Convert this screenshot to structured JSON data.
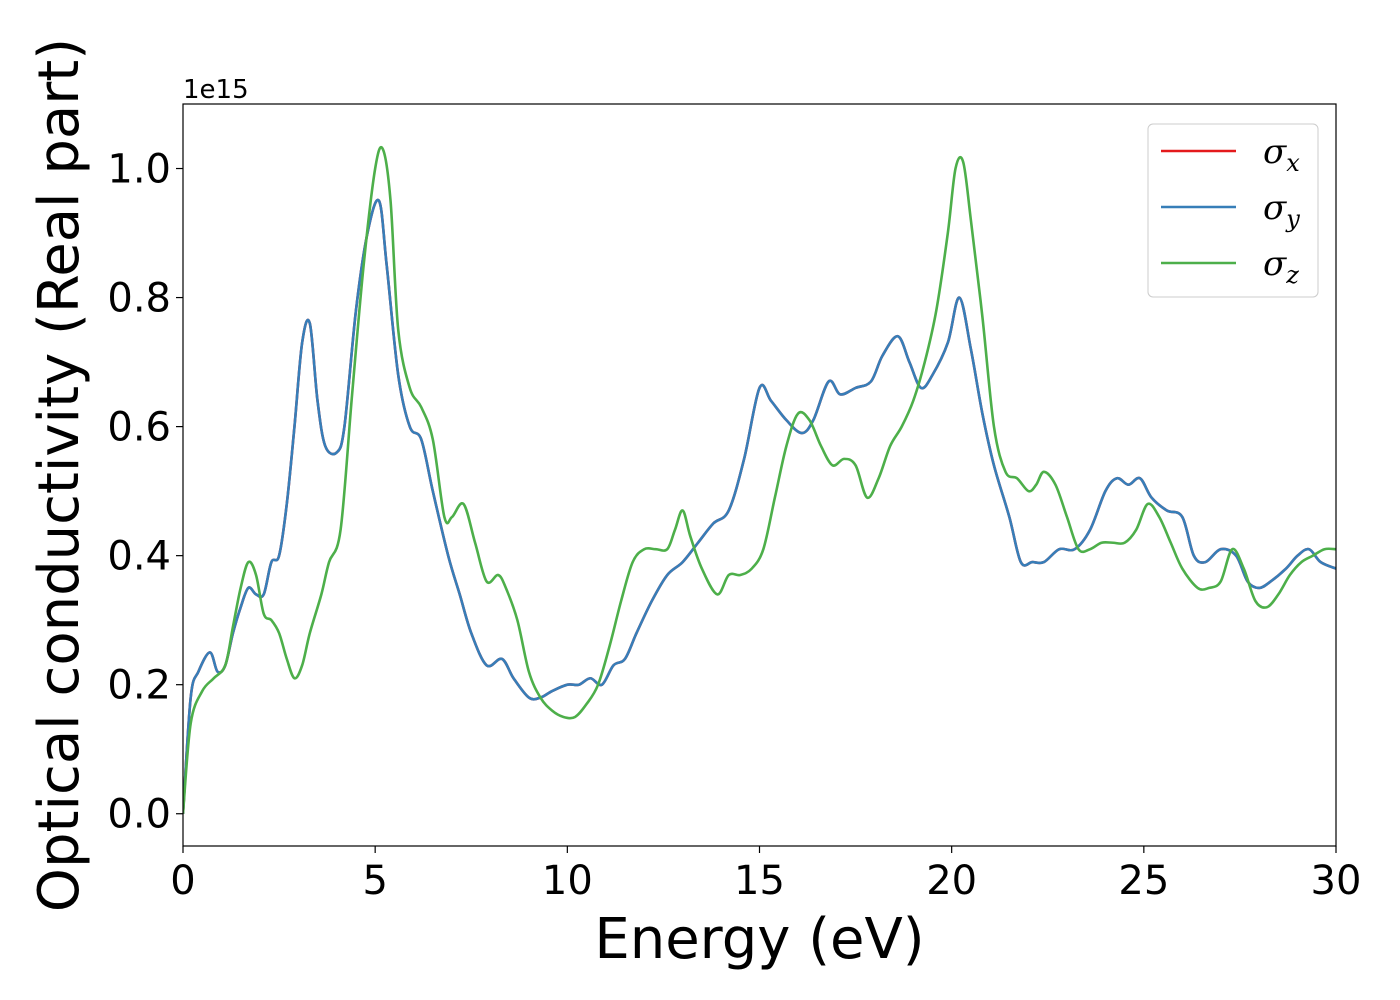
{
  "chart_data": {
    "type": "line",
    "xlabel": "Energy (eV)",
    "ylabel": "Optical conductivity (Real part)",
    "y_offset_label": "1e15",
    "xlim": [
      0,
      30
    ],
    "ylim": [
      -0.05,
      1.1
    ],
    "x_ticks": [
      0,
      5,
      10,
      15,
      20,
      25,
      30
    ],
    "y_ticks": [
      0.0,
      0.2,
      0.4,
      0.6,
      0.8,
      1.0
    ],
    "x_tick_labels": [
      "0",
      "5",
      "10",
      "15",
      "20",
      "25",
      "30"
    ],
    "y_tick_labels": [
      "0.0",
      "0.2",
      "0.4",
      "0.6",
      "0.8",
      "1.0"
    ],
    "grid": false,
    "legend_position": "top-right",
    "series": [
      {
        "name": "σx",
        "base": "σ",
        "sub": "x",
        "color": "#e41a1c",
        "x": [
          0,
          0.2,
          0.4,
          0.7,
          0.9,
          1.1,
          1.3,
          1.5,
          1.7,
          1.9,
          2.1,
          2.3,
          2.5,
          2.7,
          2.9,
          3.1,
          3.3,
          3.5,
          3.7,
          4.0,
          4.2,
          4.5,
          4.8,
          5.1,
          5.3,
          5.6,
          5.9,
          6.2,
          6.5,
          6.9,
          7.2,
          7.5,
          7.9,
          8.3,
          8.6,
          9.0,
          9.3,
          9.6,
          10.0,
          10.3,
          10.6,
          10.9,
          11.2,
          11.5,
          11.8,
          12.2,
          12.6,
          13.0,
          13.4,
          13.8,
          14.2,
          14.6,
          15.0,
          15.3,
          15.7,
          16.1,
          16.4,
          16.8,
          17.1,
          17.5,
          17.9,
          18.2,
          18.6,
          18.9,
          19.2,
          19.5,
          19.9,
          20.2,
          20.5,
          20.8,
          21.1,
          21.5,
          21.8,
          22.1,
          22.4,
          22.8,
          23.2,
          23.6,
          24.0,
          24.3,
          24.6,
          24.9,
          25.2,
          25.6,
          26.0,
          26.3,
          26.6,
          27.0,
          27.4,
          27.7,
          28.0,
          28.3,
          28.7,
          29.0,
          29.3,
          29.6,
          30.0
        ],
        "values": [
          0.0,
          0.18,
          0.22,
          0.25,
          0.22,
          0.23,
          0.28,
          0.32,
          0.35,
          0.34,
          0.34,
          0.39,
          0.4,
          0.48,
          0.6,
          0.73,
          0.76,
          0.64,
          0.57,
          0.56,
          0.6,
          0.78,
          0.9,
          0.95,
          0.85,
          0.68,
          0.6,
          0.58,
          0.5,
          0.4,
          0.34,
          0.28,
          0.23,
          0.24,
          0.21,
          0.18,
          0.18,
          0.19,
          0.2,
          0.2,
          0.21,
          0.2,
          0.23,
          0.24,
          0.28,
          0.33,
          0.37,
          0.39,
          0.42,
          0.45,
          0.47,
          0.55,
          0.66,
          0.64,
          0.61,
          0.59,
          0.61,
          0.67,
          0.65,
          0.66,
          0.67,
          0.71,
          0.74,
          0.7,
          0.66,
          0.68,
          0.73,
          0.8,
          0.72,
          0.62,
          0.54,
          0.46,
          0.39,
          0.39,
          0.39,
          0.41,
          0.41,
          0.44,
          0.5,
          0.52,
          0.51,
          0.52,
          0.49,
          0.47,
          0.46,
          0.4,
          0.39,
          0.41,
          0.4,
          0.36,
          0.35,
          0.36,
          0.38,
          0.4,
          0.41,
          0.39,
          0.38
        ]
      },
      {
        "name": "σy",
        "base": "σ",
        "sub": "y",
        "color": "#377eb8",
        "x": [
          0,
          0.2,
          0.4,
          0.7,
          0.9,
          1.1,
          1.3,
          1.5,
          1.7,
          1.9,
          2.1,
          2.3,
          2.5,
          2.7,
          2.9,
          3.1,
          3.3,
          3.5,
          3.7,
          4.0,
          4.2,
          4.5,
          4.8,
          5.1,
          5.3,
          5.6,
          5.9,
          6.2,
          6.5,
          6.9,
          7.2,
          7.5,
          7.9,
          8.3,
          8.6,
          9.0,
          9.3,
          9.6,
          10.0,
          10.3,
          10.6,
          10.9,
          11.2,
          11.5,
          11.8,
          12.2,
          12.6,
          13.0,
          13.4,
          13.8,
          14.2,
          14.6,
          15.0,
          15.3,
          15.7,
          16.1,
          16.4,
          16.8,
          17.1,
          17.5,
          17.9,
          18.2,
          18.6,
          18.9,
          19.2,
          19.5,
          19.9,
          20.2,
          20.5,
          20.8,
          21.1,
          21.5,
          21.8,
          22.1,
          22.4,
          22.8,
          23.2,
          23.6,
          24.0,
          24.3,
          24.6,
          24.9,
          25.2,
          25.6,
          26.0,
          26.3,
          26.6,
          27.0,
          27.4,
          27.7,
          28.0,
          28.3,
          28.7,
          29.0,
          29.3,
          29.6,
          30.0
        ],
        "values": [
          0.0,
          0.18,
          0.22,
          0.25,
          0.22,
          0.23,
          0.28,
          0.32,
          0.35,
          0.34,
          0.34,
          0.39,
          0.4,
          0.48,
          0.6,
          0.73,
          0.76,
          0.64,
          0.57,
          0.56,
          0.6,
          0.78,
          0.9,
          0.95,
          0.85,
          0.68,
          0.6,
          0.58,
          0.5,
          0.4,
          0.34,
          0.28,
          0.23,
          0.24,
          0.21,
          0.18,
          0.18,
          0.19,
          0.2,
          0.2,
          0.21,
          0.2,
          0.23,
          0.24,
          0.28,
          0.33,
          0.37,
          0.39,
          0.42,
          0.45,
          0.47,
          0.55,
          0.66,
          0.64,
          0.61,
          0.59,
          0.61,
          0.67,
          0.65,
          0.66,
          0.67,
          0.71,
          0.74,
          0.7,
          0.66,
          0.68,
          0.73,
          0.8,
          0.72,
          0.62,
          0.54,
          0.46,
          0.39,
          0.39,
          0.39,
          0.41,
          0.41,
          0.44,
          0.5,
          0.52,
          0.51,
          0.52,
          0.49,
          0.47,
          0.46,
          0.4,
          0.39,
          0.41,
          0.4,
          0.36,
          0.35,
          0.36,
          0.38,
          0.4,
          0.41,
          0.39,
          0.38
        ]
      },
      {
        "name": "σz",
        "base": "σ",
        "sub": "z",
        "color": "#4daf4a",
        "x": [
          0,
          0.2,
          0.5,
          0.8,
          1.1,
          1.3,
          1.5,
          1.7,
          1.9,
          2.1,
          2.3,
          2.5,
          2.7,
          2.9,
          3.1,
          3.3,
          3.6,
          3.8,
          4.1,
          4.4,
          4.7,
          5.0,
          5.2,
          5.4,
          5.6,
          5.9,
          6.2,
          6.5,
          6.8,
          7.0,
          7.3,
          7.6,
          7.9,
          8.2,
          8.4,
          8.7,
          9.0,
          9.3,
          9.6,
          9.9,
          10.2,
          10.5,
          10.8,
          11.1,
          11.4,
          11.7,
          12.0,
          12.3,
          12.6,
          12.8,
          13.0,
          13.2,
          13.5,
          13.9,
          14.2,
          14.5,
          14.8,
          15.1,
          15.4,
          15.7,
          16.0,
          16.3,
          16.6,
          16.9,
          17.2,
          17.5,
          17.8,
          18.1,
          18.4,
          18.7,
          19.0,
          19.3,
          19.6,
          19.9,
          20.1,
          20.3,
          20.5,
          20.8,
          21.1,
          21.4,
          21.7,
          22.0,
          22.2,
          22.4,
          22.7,
          23.0,
          23.3,
          23.6,
          23.9,
          24.2,
          24.5,
          24.8,
          25.1,
          25.4,
          25.7,
          26.0,
          26.4,
          26.7,
          27.0,
          27.3,
          27.6,
          27.9,
          28.2,
          28.5,
          28.8,
          29.1,
          29.4,
          29.7,
          30.0
        ],
        "values": [
          0.0,
          0.14,
          0.19,
          0.21,
          0.23,
          0.29,
          0.35,
          0.39,
          0.37,
          0.31,
          0.3,
          0.28,
          0.24,
          0.21,
          0.23,
          0.28,
          0.34,
          0.39,
          0.44,
          0.65,
          0.85,
          1.0,
          1.03,
          0.95,
          0.75,
          0.66,
          0.63,
          0.58,
          0.46,
          0.46,
          0.48,
          0.42,
          0.36,
          0.37,
          0.35,
          0.3,
          0.22,
          0.18,
          0.16,
          0.15,
          0.15,
          0.17,
          0.2,
          0.26,
          0.33,
          0.39,
          0.41,
          0.41,
          0.41,
          0.44,
          0.47,
          0.43,
          0.38,
          0.34,
          0.37,
          0.37,
          0.38,
          0.41,
          0.49,
          0.57,
          0.62,
          0.61,
          0.57,
          0.54,
          0.55,
          0.54,
          0.49,
          0.52,
          0.57,
          0.6,
          0.64,
          0.7,
          0.78,
          0.9,
          1.0,
          1.01,
          0.92,
          0.77,
          0.6,
          0.53,
          0.52,
          0.5,
          0.51,
          0.53,
          0.51,
          0.46,
          0.41,
          0.41,
          0.42,
          0.42,
          0.42,
          0.44,
          0.48,
          0.46,
          0.42,
          0.38,
          0.35,
          0.35,
          0.36,
          0.41,
          0.38,
          0.33,
          0.32,
          0.34,
          0.37,
          0.39,
          0.4,
          0.41,
          0.41
        ]
      }
    ]
  }
}
